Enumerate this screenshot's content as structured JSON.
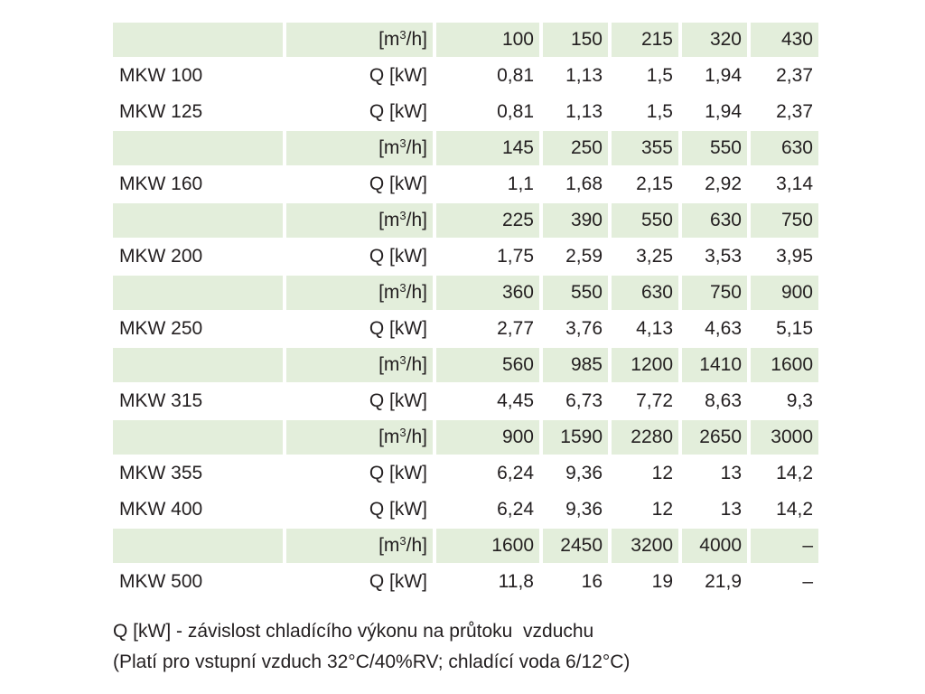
{
  "colors": {
    "band": "#e3eedb",
    "text": "#231f20"
  },
  "rows": [
    {
      "type": "flow",
      "model": "",
      "unit": "[m³/h]",
      "values": [
        "100",
        "150",
        "215",
        "320",
        "430"
      ]
    },
    {
      "type": "power",
      "model": "MKW 100",
      "unit": "Q [kW]",
      "values": [
        "0,81",
        "1,13",
        "1,5",
        "1,94",
        "2,37"
      ]
    },
    {
      "type": "power",
      "model": "MKW 125",
      "unit": "Q [kW]",
      "values": [
        "0,81",
        "1,13",
        "1,5",
        "1,94",
        "2,37"
      ]
    },
    {
      "type": "flow",
      "model": "",
      "unit": "[m³/h]",
      "values": [
        "145",
        "250",
        "355",
        "550",
        "630"
      ]
    },
    {
      "type": "power",
      "model": "MKW 160",
      "unit": "Q [kW]",
      "values": [
        "1,1",
        "1,68",
        "2,15",
        "2,92",
        "3,14"
      ]
    },
    {
      "type": "flow",
      "model": "",
      "unit": "[m³/h]",
      "values": [
        "225",
        "390",
        "550",
        "630",
        "750"
      ]
    },
    {
      "type": "power",
      "model": "MKW 200",
      "unit": "Q [kW]",
      "values": [
        "1,75",
        "2,59",
        "3,25",
        "3,53",
        "3,95"
      ]
    },
    {
      "type": "flow",
      "model": "",
      "unit": "[m³/h]",
      "values": [
        "360",
        "550",
        "630",
        "750",
        "900"
      ]
    },
    {
      "type": "power",
      "model": "MKW 250",
      "unit": "Q [kW]",
      "values": [
        "2,77",
        "3,76",
        "4,13",
        "4,63",
        "5,15"
      ]
    },
    {
      "type": "flow",
      "model": "",
      "unit": "[m³/h]",
      "values": [
        "560",
        "985",
        "1200",
        "1410",
        "1600"
      ]
    },
    {
      "type": "power",
      "model": "MKW 315",
      "unit": "Q [kW]",
      "values": [
        "4,45",
        "6,73",
        "7,72",
        "8,63",
        "9,3"
      ]
    },
    {
      "type": "flow",
      "model": "",
      "unit": "[m³/h]",
      "values": [
        "900",
        "1590",
        "2280",
        "2650",
        "3000"
      ]
    },
    {
      "type": "power",
      "model": "MKW 355",
      "unit": "Q [kW]",
      "values": [
        "6,24",
        "9,36",
        "12",
        "13",
        "14,2"
      ]
    },
    {
      "type": "power",
      "model": "MKW 400",
      "unit": "Q [kW]",
      "values": [
        "6,24",
        "9,36",
        "12",
        "13",
        "14,2"
      ]
    },
    {
      "type": "flow",
      "model": "",
      "unit": "[m³/h]",
      "values": [
        "1600",
        "2450",
        "3200",
        "4000",
        "–"
      ]
    },
    {
      "type": "power",
      "model": "MKW 500",
      "unit": "Q [kW]",
      "values": [
        "11,8",
        "16",
        "19",
        "21,9",
        "–"
      ]
    }
  ],
  "notes": {
    "line1": "Q [kW] - závislost chladícího výkonu na průtoku  vzduchu",
    "line2": "(Platí pro vstupní vzduch 32°C/40%RV; chladící voda 6/12°C)"
  }
}
